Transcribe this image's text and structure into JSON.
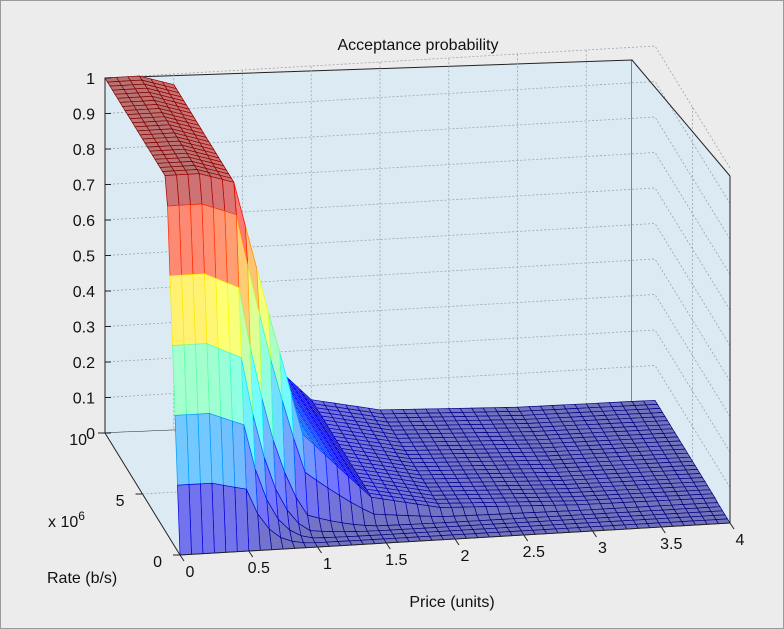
{
  "chart_data": {
    "type": "surface",
    "title": "Acceptance probability",
    "xlabel": "Price (units)",
    "ylabel": "Rate (b/s)",
    "ylabel_multiplier": "x 10",
    "ylabel_exponent": "6",
    "zlabel": "",
    "xlim": [
      0,
      4
    ],
    "ylim": [
      0,
      10000000
    ],
    "zlim": [
      0,
      1
    ],
    "x_ticks": [
      "0",
      "0.5",
      "1",
      "1.5",
      "2",
      "2.5",
      "3",
      "3.5",
      "4"
    ],
    "y_ticks": [
      "0",
      "5",
      "10"
    ],
    "z_ticks": [
      "0",
      "0.1",
      "0.2",
      "0.3",
      "0.4",
      "0.5",
      "0.6",
      "0.7",
      "0.8",
      "0.9",
      "1"
    ],
    "grid": true,
    "colormap": "jet",
    "surface": {
      "description": "Acceptance probability vs. price and rate: equal to 1 for low price and nonzero rate, falling steeply toward 0 as price increases; 0 at rate 0.",
      "price_samples": [
        0,
        0.25,
        0.5,
        0.75,
        1.0,
        1.5,
        2.0,
        3.0,
        4.0
      ],
      "probability_at_max_rate": [
        1,
        1,
        0.97,
        0.6,
        0.25,
        0.06,
        0.02,
        0.005,
        0.002
      ]
    }
  }
}
